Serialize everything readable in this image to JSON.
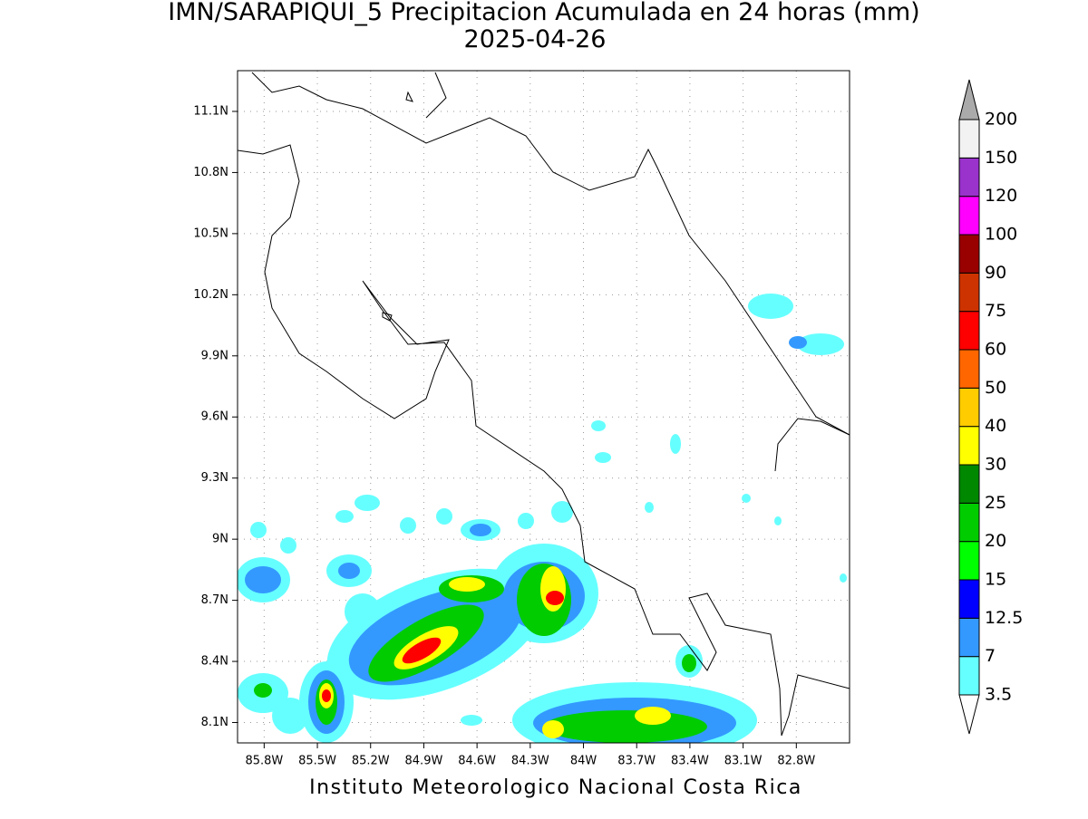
{
  "map": {
    "title": "IMN/SARAPIQUI_5 Precipitacion Acumulada en 24 horas (mm)",
    "subtitle": "2025-04-26",
    "footer": "Instituto Meteorologico Nacional Costa Rica",
    "xlim": [
      -85.95,
      -82.5
    ],
    "ylim": [
      8.0,
      11.3
    ],
    "xticks": [
      {
        "value": -85.8,
        "label": "85.8W"
      },
      {
        "value": -85.5,
        "label": "85.5W"
      },
      {
        "value": -85.2,
        "label": "85.2W"
      },
      {
        "value": -84.9,
        "label": "84.9W"
      },
      {
        "value": -84.6,
        "label": "84.6W"
      },
      {
        "value": -84.3,
        "label": "84.3W"
      },
      {
        "value": -84,
        "label": "84W"
      },
      {
        "value": -83.7,
        "label": "83.7W"
      },
      {
        "value": -83.4,
        "label": "83.4W"
      },
      {
        "value": -83.1,
        "label": "83.1W"
      },
      {
        "value": -82.8,
        "label": "82.8W"
      }
    ],
    "yticks": [
      {
        "value": 8.1,
        "label": "8.1N"
      },
      {
        "value": 8.4,
        "label": "8.4N"
      },
      {
        "value": 8.7,
        "label": "8.7N"
      },
      {
        "value": 9,
        "label": "9N"
      },
      {
        "value": 9.3,
        "label": "9.3N"
      },
      {
        "value": 9.6,
        "label": "9.6N"
      },
      {
        "value": 9.9,
        "label": "9.9N"
      },
      {
        "value": 10.2,
        "label": "10.2N"
      },
      {
        "value": 10.5,
        "label": "10.5N"
      },
      {
        "value": 10.8,
        "label": "10.8N"
      },
      {
        "value": 11.1,
        "label": "11.1N"
      }
    ],
    "grid": true,
    "colorbar": {
      "levels": [
        3.5,
        7,
        12.5,
        15,
        20,
        25,
        30,
        40,
        50,
        60,
        75,
        90,
        100,
        120,
        150,
        200
      ],
      "colors": [
        "#66ffff",
        "#3399ff",
        "#0000ff",
        "#00ff00",
        "#00cc00",
        "#008800",
        "#ffff00",
        "#ffcc00",
        "#ff6600",
        "#ff0000",
        "#cc3300",
        "#990000",
        "#ff00ff",
        "#9933cc",
        "#f2f2f2"
      ],
      "under_color": "#ffffff",
      "over_color": "#aaaaaa"
    }
  }
}
